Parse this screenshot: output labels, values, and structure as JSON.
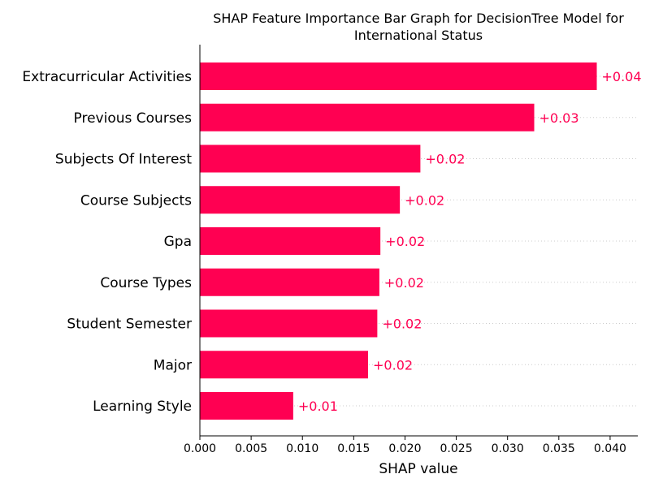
{
  "chart_data": {
    "type": "bar",
    "orientation": "horizontal",
    "title_line1": "SHAP Feature Importance Bar Graph for DecisionTree Model for",
    "title_line2": "International Status",
    "xlabel": "SHAP value",
    "categories": [
      "Extracurricular Activities",
      "Previous Courses",
      "Subjects Of Interest",
      "Course Subjects",
      "Gpa",
      "Course Types",
      "Student Semester",
      "Major",
      "Learning Style"
    ],
    "values": [
      0.0387,
      0.0326,
      0.0215,
      0.0195,
      0.0176,
      0.0175,
      0.0173,
      0.0164,
      0.0091
    ],
    "value_labels": [
      "+0.04",
      "+0.03",
      "+0.02",
      "+0.02",
      "+0.02",
      "+0.02",
      "+0.02",
      "+0.02",
      "+0.01"
    ],
    "xlim": [
      0,
      0.0427
    ],
    "xticks": [
      0.0,
      0.005,
      0.01,
      0.015,
      0.02,
      0.025,
      0.03,
      0.035,
      0.04
    ],
    "xtick_labels": [
      "0.000",
      "0.005",
      "0.010",
      "0.015",
      "0.020",
      "0.025",
      "0.030",
      "0.035",
      "0.040"
    ],
    "grid": "dotted guide lines per row",
    "colors": {
      "bar": "#ff0052",
      "text": "#000000",
      "guide": "#cccccc"
    }
  }
}
